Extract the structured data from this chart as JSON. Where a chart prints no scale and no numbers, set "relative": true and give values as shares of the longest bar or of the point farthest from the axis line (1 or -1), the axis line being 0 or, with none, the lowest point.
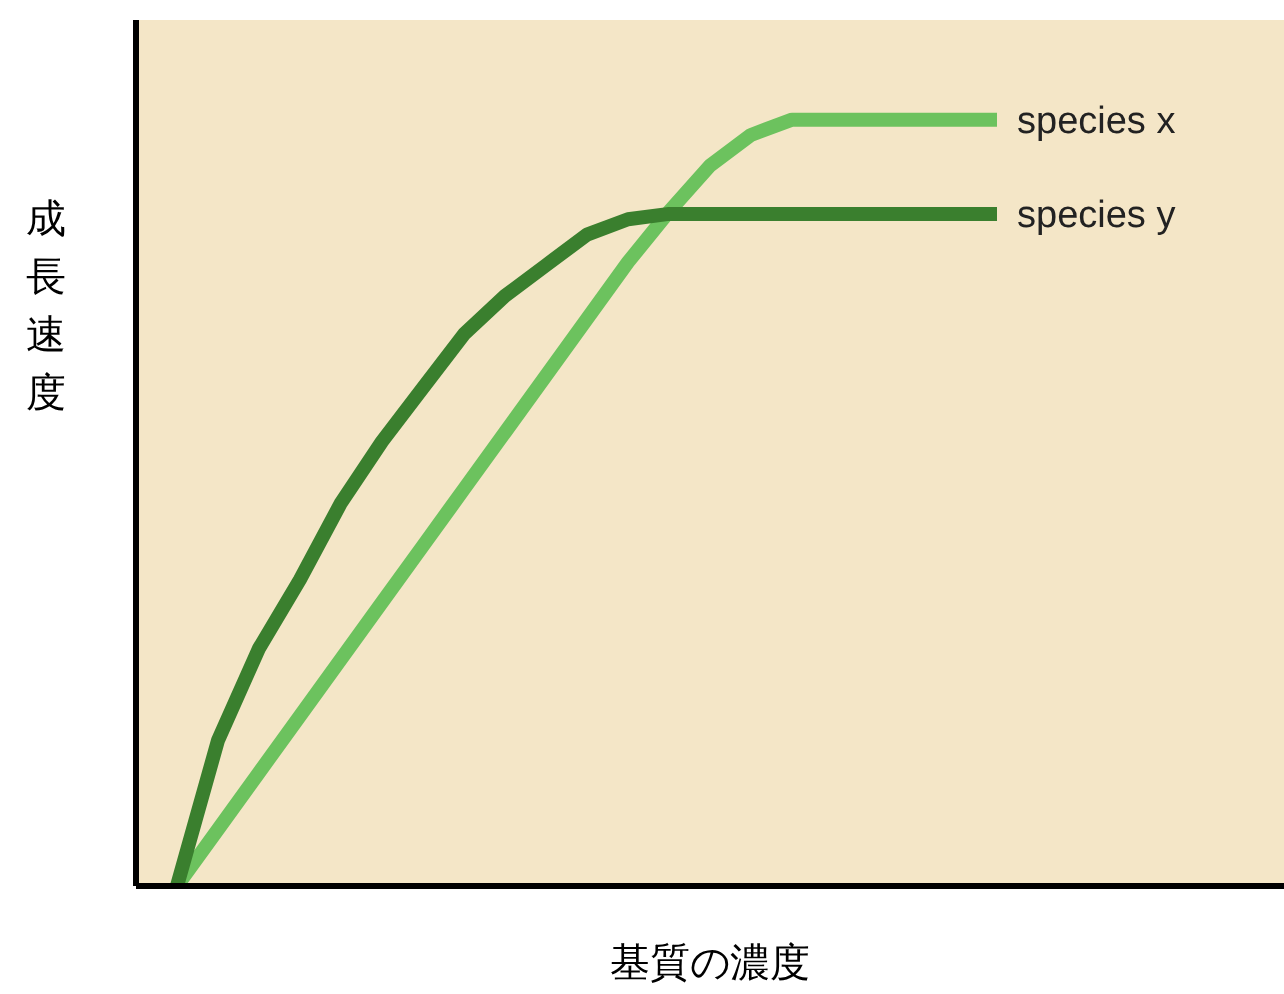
{
  "chart_data": {
    "type": "line",
    "relative": true,
    "xlabel": "基質の濃度",
    "ylabel": "成長速度",
    "legend": false,
    "grid": false,
    "marker": "none",
    "line_style": "solid",
    "categories": [
      null,
      null,
      null,
      null,
      null,
      null,
      null,
      null,
      null,
      null,
      null,
      null,
      null,
      null,
      null,
      null,
      null,
      null,
      null,
      null,
      null,
      null,
      null,
      null,
      null,
      null,
      null,
      null,
      null
    ],
    "series": [
      {
        "name": "species x",
        "color": "#6cc25e",
        "values": [
          null,
          0,
          0.074,
          0.148,
          0.222,
          0.296,
          0.37,
          0.444,
          0.518,
          0.592,
          0.666,
          0.74,
          0.814,
          0.88,
          0.94,
          0.98,
          1,
          1,
          1,
          1,
          1,
          1,
          null,
          null,
          null,
          null,
          null,
          null,
          null
        ]
      },
      {
        "name": "species y",
        "color": "#3a7f2e",
        "values": [
          null,
          0,
          0.19,
          0.31,
          0.4,
          0.5,
          0.58,
          0.65,
          0.72,
          0.77,
          0.81,
          0.85,
          0.87,
          0.877,
          0.877,
          0.877,
          0.877,
          0.877,
          0.877,
          0.877,
          0.877,
          0.877,
          null,
          null,
          null,
          null,
          null,
          null,
          null
        ]
      }
    ]
  }
}
